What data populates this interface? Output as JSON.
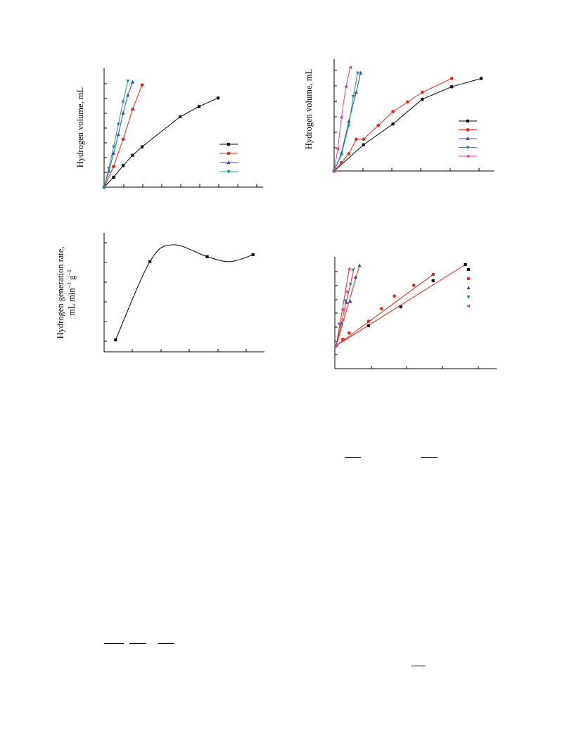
{
  "chart_data": [
    {
      "id": "a",
      "type": "line",
      "title": "",
      "xlabel": "",
      "ylabel": "Hydrogen volume, mL",
      "xlim": [
        0,
        8
      ],
      "ylim": [
        0,
        6
      ],
      "grid": false,
      "legend": "right",
      "series": [
        {
          "color": "#000000",
          "marker": "square",
          "x": [
            0,
            0.5,
            1,
            1.5,
            2,
            4,
            5,
            6
          ],
          "y": [
            0,
            0.53,
            1.15,
            1.7,
            2.15,
            3.75,
            4.3,
            4.75
          ]
        },
        {
          "color": "#e8251c",
          "marker": "circle",
          "x": [
            0,
            0.5,
            1,
            1.5,
            2
          ],
          "y": [
            0,
            1.1,
            2.55,
            4.15,
            5.45
          ]
        },
        {
          "color": "#3b47b0",
          "marker": "triangle-up",
          "x": [
            0,
            0.25,
            0.5,
            0.75,
            1,
            1.25,
            1.5
          ],
          "y": [
            0,
            0.85,
            1.8,
            2.8,
            3.95,
            4.9,
            5.6
          ]
        },
        {
          "color": "#139c8c",
          "marker": "triangle-down",
          "x": [
            0,
            0.25,
            0.5,
            0.75,
            1,
            1.25
          ],
          "y": [
            0,
            1.0,
            2.15,
            3.35,
            4.55,
            5.65
          ]
        }
      ]
    },
    {
      "id": "b",
      "type": "line",
      "title": "",
      "xlabel": "",
      "ylabel": "Hydrogen volume, mL",
      "xlim": [
        0,
        10
      ],
      "ylim": [
        0,
        8
      ],
      "grid": false,
      "legend": "right",
      "series": [
        {
          "color": "#000000",
          "marker": "square",
          "x": [
            0,
            2,
            4,
            6,
            8,
            10
          ],
          "y": [
            0,
            1.9,
            3.4,
            5.2,
            6.1,
            6.7
          ]
        },
        {
          "color": "#e8251c",
          "marker": "circle",
          "x": [
            0,
            0.5,
            1,
            1.5,
            2,
            3,
            4,
            5,
            6,
            8
          ],
          "y": [
            0,
            0.6,
            1.25,
            2.3,
            2.3,
            3.3,
            4.3,
            5.0,
            5.7,
            6.7
          ]
        },
        {
          "color": "#3b47b0",
          "marker": "triangle-up",
          "x": [
            0,
            0.5,
            1,
            1.5,
            1.8
          ],
          "y": [
            0,
            1.3,
            3.6,
            5.7,
            7.1
          ]
        },
        {
          "color": "#139c8c",
          "marker": "triangle-down",
          "x": [
            0,
            0.5,
            1,
            1.3,
            1.6
          ],
          "y": [
            0,
            1.2,
            3.3,
            5.4,
            7.1
          ]
        },
        {
          "color": "#d93fa8",
          "marker": "triangle-left",
          "x": [
            0,
            0.25,
            0.5,
            0.8,
            1.1
          ],
          "y": [
            0,
            1.6,
            3.9,
            6.1,
            7.5
          ]
        }
      ]
    },
    {
      "id": "c",
      "type": "line",
      "title": "",
      "xlabel": "",
      "ylabel_lines": [
        "Hydrogen generation rate,",
        "mL min",
        "−1",
        " g",
        "−1"
      ],
      "xlim": [
        0,
        7
      ],
      "ylim": [
        0,
        6
      ],
      "grid": false,
      "legend": "none",
      "series": [
        {
          "color": "#000000",
          "marker": "square",
          "x": [
            0.5,
            2,
            4.5,
            6.5
          ],
          "y": [
            0.6,
            4.55,
            4.8,
            4.9
          ]
        }
      ],
      "curve_through": [
        [
          0.5,
          0.6
        ],
        [
          2,
          4.55
        ],
        [
          3,
          5.4
        ],
        [
          4.5,
          4.8
        ],
        [
          5.5,
          4.55
        ],
        [
          6.5,
          4.9
        ]
      ]
    },
    {
      "id": "d",
      "type": "scatter",
      "title": "",
      "xlabel": "",
      "ylabel": "",
      "xlim": [
        0,
        11
      ],
      "ylim": [
        -4.5,
        0.5
      ],
      "grid": false,
      "legend": "right",
      "series": [
        {
          "color": "#000000",
          "marker": "square",
          "x": [
            0,
            2.5,
            5,
            7.5,
            10
          ],
          "y": [
            0,
            -1.1,
            -2.15,
            -3.6,
            -4.5
          ],
          "fit": [
            [
              0,
              0
            ],
            [
              10,
              -4.5
            ]
          ]
        },
        {
          "color": "#e8251c",
          "marker": "circle",
          "x": [
            0,
            0.5,
            1,
            2.5,
            3.5,
            4.5,
            6,
            7.5
          ],
          "y": [
            0,
            -0.35,
            -0.7,
            -1.35,
            -2.05,
            -2.75,
            -3.35,
            -3.95
          ],
          "fit": [
            [
              0,
              0
            ],
            [
              7.5,
              -3.95
            ]
          ]
        },
        {
          "color": "#3b47b0",
          "marker": "triangle-up",
          "x": [
            0,
            0.4,
            0.8,
            1.1,
            1.5,
            1.8
          ],
          "y": [
            0,
            -1.25,
            -2.4,
            -2.45,
            -3.8,
            -4.45
          ],
          "fit": [
            [
              0,
              0
            ],
            [
              1.8,
              -4.45
            ]
          ]
        },
        {
          "color": "#139c8c",
          "marker": "triangle-down",
          "x": [
            0,
            0.3,
            0.7,
            1.1,
            1.3
          ],
          "y": [
            0,
            -1.2,
            -2.5,
            -3.4,
            -4.2
          ],
          "fit": [
            [
              0,
              0
            ],
            [
              1.4,
              -4.35
            ]
          ]
        },
        {
          "color": "#d93fa8",
          "marker": "triangle-left",
          "x": [
            0,
            0.2,
            0.5,
            0.8,
            1.0
          ],
          "y": [
            0,
            -1.2,
            -2.0,
            -3.0,
            -4.25
          ],
          "fit": [
            [
              0,
              0
            ],
            [
              1.0,
              -4.25
            ]
          ]
        }
      ]
    }
  ]
}
